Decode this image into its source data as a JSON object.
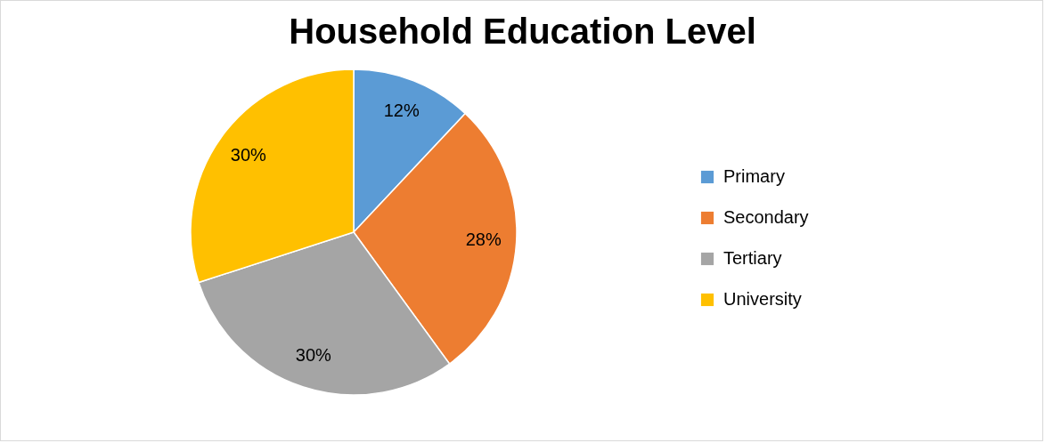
{
  "chart_data": {
    "type": "pie",
    "title": "Household Education Level",
    "categories": [
      "Primary",
      "Secondary",
      "Tertiary",
      "University"
    ],
    "values": [
      12,
      28,
      30,
      30
    ],
    "colors": [
      "#5b9bd5",
      "#ed7d31",
      "#a5a5a5",
      "#ffc000"
    ],
    "value_labels": [
      "12%",
      "28%",
      "30%",
      "30%"
    ],
    "legend": "right"
  }
}
